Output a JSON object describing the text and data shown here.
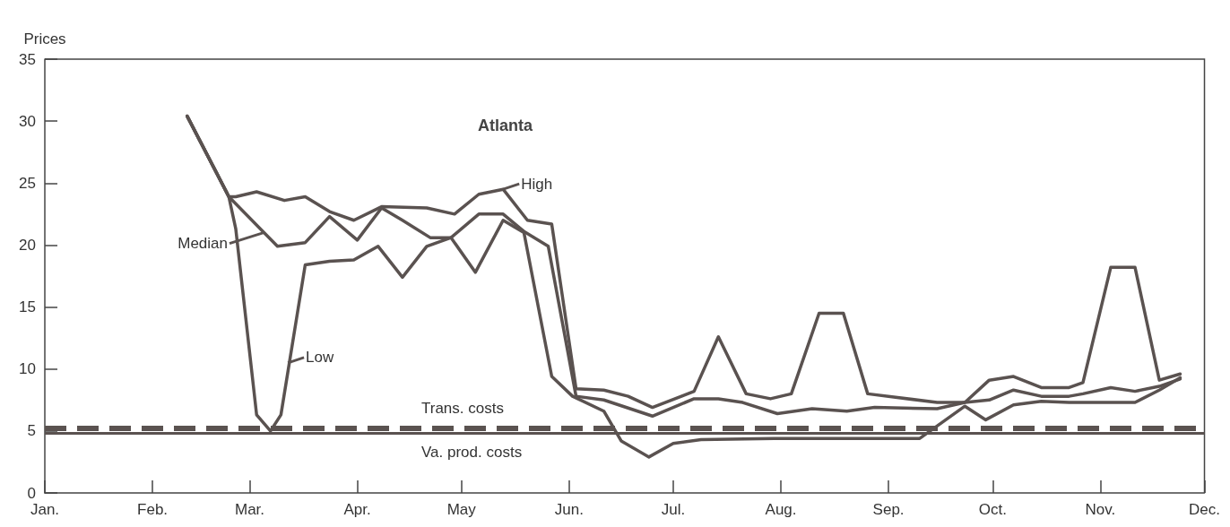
{
  "chart_data": {
    "type": "line",
    "title": "Atlanta",
    "ylabel": "Prices",
    "xlim": [
      "--01-01",
      "--12-01"
    ],
    "xticks": [
      {
        "value": "--01-01",
        "label": "Jan."
      },
      {
        "value": "--02-01",
        "label": "Feb."
      },
      {
        "value": "--03-01",
        "label": "Mar."
      },
      {
        "value": "--04-01",
        "label": "Apr."
      },
      {
        "value": "--05-01",
        "label": "May"
      },
      {
        "value": "--06-01",
        "label": "Jun."
      },
      {
        "value": "--07-01",
        "label": "Jul."
      },
      {
        "value": "--08-01",
        "label": "Aug."
      },
      {
        "value": "--09-01",
        "label": "Sep."
      },
      {
        "value": "--10-01",
        "label": "Oct."
      },
      {
        "value": "--11-01",
        "label": "Nov."
      },
      {
        "value": "--12-01",
        "label": "Dec."
      }
    ],
    "ylim": [
      0,
      35
    ],
    "yticks": [
      0,
      5,
      10,
      15,
      20,
      25,
      30,
      35
    ],
    "grid": false,
    "marker": "none",
    "line_style": "solid",
    "series": [
      {
        "color": "#5a5250",
        "x": [
          "--02-11",
          "--02-23",
          "--02-25",
          "--03-03",
          "--03-11",
          "--03-17",
          "--03-24",
          "--03-31",
          "--04-08",
          "--04-21",
          "--04-29",
          "--05-06",
          "--05-13",
          "--05-20",
          "--05-27",
          "--06-03",
          "--06-11",
          "--06-18",
          "--06-25",
          "--07-07",
          "--07-14",
          "--07-22",
          "--07-29",
          "--08-04",
          "--08-12",
          "--08-19",
          "--08-26",
          "--09-15",
          "--09-23",
          "--09-30",
          "--10-07",
          "--10-15",
          "--10-23",
          "--10-27",
          "--11-04",
          "--11-11",
          "--11-18",
          "--11-24"
        ],
        "values": [
          30.4,
          23.9,
          23.9,
          24.3,
          23.6,
          23.9,
          22.7,
          22.0,
          23.1,
          23.0,
          22.5,
          24.1,
          24.5,
          22.0,
          21.7,
          8.4,
          8.3,
          7.8,
          6.9,
          8.2,
          12.6,
          8.0,
          7.6,
          8.0,
          14.5,
          14.5,
          8.0,
          7.3,
          7.3,
          9.1,
          9.4,
          8.5,
          8.5,
          8.9,
          18.2,
          18.2,
          9.1,
          9.6
        ]
      },
      {
        "color": "#5a5250",
        "x": [
          "--02-11",
          "--02-23",
          "--03-09",
          "--03-17",
          "--03-24",
          "--04-01",
          "--04-08",
          "--04-14",
          "--04-22",
          "--04-28",
          "--05-06",
          "--05-13",
          "--05-19",
          "--05-26",
          "--06-03",
          "--06-11",
          "--06-25",
          "--07-07",
          "--07-14",
          "--07-21",
          "--07-31",
          "--08-10",
          "--08-20",
          "--08-28",
          "--09-15",
          "--09-23",
          "--09-30",
          "--10-07",
          "--10-15",
          "--10-23",
          "--10-27",
          "--11-04",
          "--11-11",
          "--11-18",
          "--11-24"
        ],
        "values": [
          30.4,
          23.9,
          19.9,
          20.2,
          22.3,
          20.4,
          23.0,
          22.0,
          20.6,
          20.6,
          22.5,
          22.5,
          21.1,
          19.9,
          7.8,
          7.5,
          6.2,
          7.6,
          7.6,
          7.3,
          6.4,
          6.8,
          6.6,
          6.9,
          6.8,
          7.3,
          7.5,
          8.3,
          7.8,
          7.8,
          8.0,
          8.5,
          8.2,
          8.6,
          9.2
        ]
      },
      {
        "color": "#5a5250",
        "x": [
          "--02-11",
          "--02-23",
          "--02-25",
          "--03-03",
          "--03-07",
          "--03-10",
          "--03-17",
          "--03-24",
          "--03-31",
          "--04-07",
          "--04-14",
          "--04-21",
          "--04-28",
          "--05-05",
          "--05-13",
          "--05-19",
          "--05-27",
          "--06-02",
          "--06-11",
          "--06-16",
          "--06-24",
          "--07-01",
          "--07-09",
          "--07-30",
          "--08-23",
          "--09-10",
          "--09-23",
          "--09-29",
          "--10-07",
          "--10-15",
          "--10-23",
          "--11-11",
          "--11-18",
          "--11-24"
        ],
        "values": [
          30.4,
          23.9,
          21.3,
          6.3,
          5.0,
          6.3,
          18.4,
          18.7,
          18.8,
          19.9,
          17.4,
          19.9,
          20.6,
          17.8,
          22.0,
          21.0,
          9.4,
          7.8,
          6.6,
          4.2,
          2.9,
          4.0,
          4.3,
          4.4,
          4.4,
          4.4,
          7.0,
          5.9,
          7.1,
          7.4,
          7.3,
          7.3,
          8.3,
          9.3
        ]
      }
    ],
    "ref_lines": [
      {
        "axis": "y",
        "value": 5.2,
        "label": "Trans. costs",
        "line_style": "dashed",
        "color": "#5a5250"
      },
      {
        "axis": "y",
        "value": 4.8,
        "label": "Va. prod. costs",
        "line_style": "solid",
        "color": "#5a5250"
      }
    ],
    "annotations": [
      {
        "text": "High",
        "x": "--05-13",
        "y": 24.5
      },
      {
        "text": "Median",
        "x": "--03-05",
        "y": 21.0
      },
      {
        "text": "Low",
        "x": "--03-12",
        "y": 10.5
      }
    ]
  }
}
